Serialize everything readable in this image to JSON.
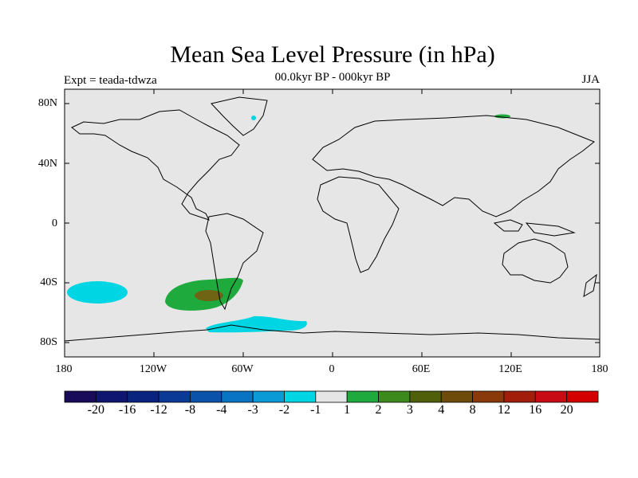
{
  "title": "Mean Sea Level Pressure (in hPa)",
  "subtitle": "00.0kyr BP - 000kyr BP",
  "experiment": "Expt = teada-tdwza",
  "season": "JJA",
  "lat_labels": [
    "80N",
    "40N",
    "0",
    "40S",
    "80S"
  ],
  "lon_labels": [
    "180",
    "120W",
    "60W",
    "0",
    "60E",
    "120E",
    "180"
  ],
  "colorbar": {
    "colors": [
      "#1a0a5a",
      "#0e1670",
      "#0a237f",
      "#0a3a96",
      "#0a52aa",
      "#0a74c4",
      "#0a9ad6",
      "#00d6e3",
      "#e6e6e6",
      "#1eaa3c",
      "#3c8a1e",
      "#505f0a",
      "#6e4b0a",
      "#8a3a0a",
      "#a01e0a",
      "#c80a14",
      "#d40000"
    ],
    "labels": [
      "-20",
      "-16",
      "-12",
      "-8",
      "-4",
      "-3",
      "-2",
      "-1",
      "1",
      "2",
      "3",
      "4",
      "8",
      "12",
      "16",
      "20"
    ]
  },
  "colors": {
    "ocean_bg": "#e6e6e6",
    "cyan": "#00d6e3",
    "green": "#1eaa3c",
    "darkgreen": "#3c8a1e",
    "olive": "#6e6414"
  }
}
